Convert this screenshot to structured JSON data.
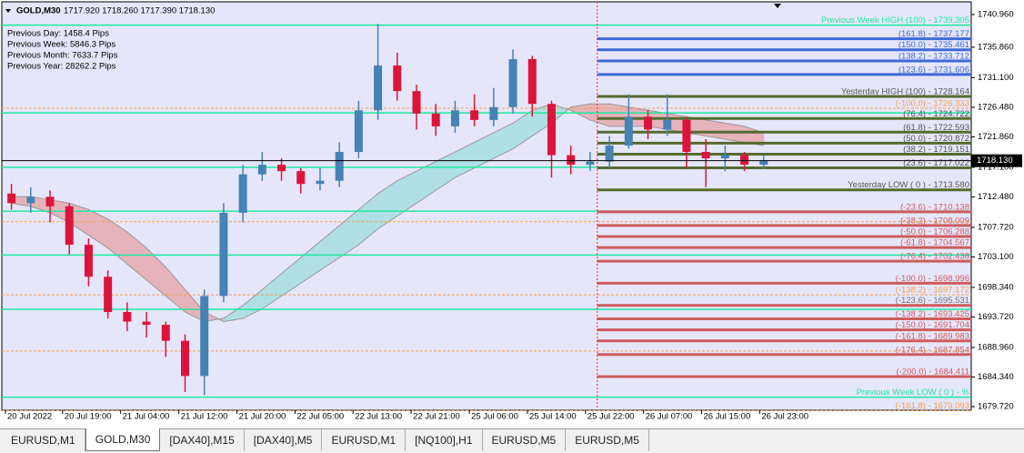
{
  "chart_data": {
    "type": "candlestick",
    "title": "GOLD,M30",
    "header_prices": "1717.920 1718.260 1717.390 1718.130",
    "info_lines": [
      "Previous Day: 1458.4 Pips",
      "Previous Week: 5846.3 Pips",
      "Previous Month: 7633.7 Pips",
      "Previous Year: 28262.2 Pips"
    ],
    "xlim": [
      -0.5,
      49.76
    ],
    "xticks": [
      {
        "value": -0.31,
        "label": "20 Jul 2022"
      },
      {
        "value": 2.65,
        "label": "20 Jul 19:00"
      },
      {
        "value": 5.66,
        "label": "21 Jul 04:00"
      },
      {
        "value": 8.68,
        "label": "21 Jul 12:00"
      },
      {
        "value": 11.69,
        "label": "21 Jul 20:00"
      },
      {
        "value": 14.7,
        "label": "22 Jul 05:00"
      },
      {
        "value": 17.71,
        "label": "22 Jul 13:00"
      },
      {
        "value": 20.72,
        "label": "22 Jul 21:00"
      },
      {
        "value": 23.74,
        "label": "25 Jul 06:00"
      },
      {
        "value": 26.75,
        "label": "25 Jul 14:00"
      },
      {
        "value": 29.76,
        "label": "25 Jul 22:00"
      },
      {
        "value": 32.77,
        "label": "26 Jul 07:00"
      },
      {
        "value": 35.78,
        "label": "26 Jul 15:00"
      },
      {
        "value": 38.79,
        "label": "26 Jul 23:00"
      }
    ],
    "ylim": [
      1679.15,
      1742.95
    ],
    "yticks": [
      {
        "value": 1740.96,
        "label": "1740.960"
      },
      {
        "value": 1735.86,
        "label": "1735.860"
      },
      {
        "value": 1731.1,
        "label": "1731.100"
      },
      {
        "value": 1726.48,
        "label": "1726.480"
      },
      {
        "value": 1721.86,
        "label": "1721.860"
      },
      {
        "value": 1717.1,
        "label": "1717.100"
      },
      {
        "value": 1712.48,
        "label": "1712.480"
      },
      {
        "value": 1707.72,
        "label": "1707.720"
      },
      {
        "value": 1703.1,
        "label": "1703.100"
      },
      {
        "value": 1698.34,
        "label": "1698.340"
      },
      {
        "value": 1693.72,
        "label": "1693.720"
      },
      {
        "value": 1688.96,
        "label": "1688.960"
      },
      {
        "value": 1684.34,
        "label": "1684.340"
      },
      {
        "value": 1679.72,
        "label": "1679.720"
      }
    ],
    "current_price": {
      "value": 1718.13,
      "label": "1718.130"
    },
    "up_color": "#4682b4",
    "down_color": "#dc143c",
    "open": [
      1713,
      1711.5,
      1712.5,
      1711,
      1705,
      1700,
      1694.5,
      1693,
      1692.5,
      1690,
      1684.5,
      1697,
      1710,
      1716,
      1717.5,
      1716.5,
      1714.5,
      1715,
      1719.5,
      1726,
      1733,
      1729,
      1725.5,
      1723.5,
      1726,
      1724.5,
      1726.5,
      1734,
      1727,
      1719,
      1717.5,
      1718,
      1720.5,
      1725,
      1723,
      1724.5,
      1719.5,
      1718.5,
      1719,
      1717.5
    ],
    "high": [
      1714.5,
      1714,
      1713.5,
      1711.5,
      1706,
      1701,
      1696,
      1694.5,
      1693,
      1691,
      1698,
      1711.5,
      1717.5,
      1719.5,
      1718.5,
      1717,
      1717,
      1721,
      1727.5,
      1739.5,
      1735,
      1730,
      1727,
      1727.5,
      1728.5,
      1729.5,
      1735.5,
      1734.5,
      1727.5,
      1720.5,
      1719.5,
      1722,
      1728.5,
      1726,
      1728.5,
      1725,
      1721.5,
      1720.5,
      1719.5,
      1718.9
    ],
    "low": [
      1710.5,
      1710,
      1708.5,
      1703.5,
      1698.5,
      1693.5,
      1691.5,
      1690.5,
      1687.5,
      1682,
      1681.5,
      1696,
      1708.5,
      1715,
      1715,
      1713,
      1713.5,
      1714,
      1718.5,
      1724.5,
      1727.5,
      1723,
      1722,
      1722.5,
      1723.5,
      1723.5,
      1725.5,
      1725,
      1715.5,
      1716,
      1716.5,
      1717,
      1720,
      1721.5,
      1722,
      1717,
      1714,
      1716.5,
      1716.5,
      1716.8
    ],
    "close": [
      1711.5,
      1712.5,
      1711,
      1705,
      1700,
      1694.5,
      1693,
      1692.5,
      1690,
      1684.5,
      1697,
      1710,
      1716,
      1717.5,
      1716.5,
      1714.5,
      1715,
      1719.5,
      1726,
      1733,
      1729,
      1725.5,
      1723.5,
      1726,
      1724.5,
      1726.5,
      1734,
      1727,
      1719,
      1717.5,
      1718,
      1720.5,
      1725,
      1723,
      1724.5,
      1719.5,
      1718.5,
      1719,
      1717.5,
      1718.13
    ],
    "cloud": {
      "fast": [
        1711.5,
        1711,
        1710,
        1708.5,
        1706.5,
        1704.5,
        1702,
        1699.5,
        1697,
        1694.5,
        1693,
        1693.5,
        1695.5,
        1698,
        1700.5,
        1703,
        1705.5,
        1708,
        1710.5,
        1713,
        1715,
        1716.5,
        1718,
        1719.5,
        1721,
        1722.5,
        1724,
        1726,
        1727,
        1726,
        1724.5,
        1723.5,
        1723.5,
        1723.5,
        1723,
        1722.5,
        1722,
        1721.5,
        1721,
        1720.5
      ],
      "slow": [
        1712.5,
        1712.5,
        1712,
        1711.5,
        1710.5,
        1709,
        1707,
        1704.5,
        1701.5,
        1698,
        1694.5,
        1693,
        1693.5,
        1695,
        1697,
        1699,
        1701,
        1703,
        1705,
        1707.5,
        1709.5,
        1711.5,
        1713.5,
        1715.5,
        1717,
        1718.5,
        1720,
        1722,
        1724,
        1726.5,
        1727,
        1727,
        1726.5,
        1726,
        1725.5,
        1725,
        1724.5,
        1724,
        1723.5,
        1722.5
      ],
      "falling_color": "#e6b3bb",
      "rising_color": "#b0e0e6",
      "line_color": "#9a9a9a"
    },
    "separator_x": 30.37,
    "separator_color": "#e0303a",
    "levels": [
      {
        "value": 1739.305,
        "label": "Previous Week HIGH (100) - 1739.305",
        "color": "#1de9a0",
        "style": "thin"
      },
      {
        "value": 1725.592,
        "color": "#1de9a0",
        "style": "thin"
      },
      {
        "value": 1717.109,
        "color": "#1de9a0",
        "style": "thin"
      },
      {
        "value": 1710.253,
        "color": "#1de9a0",
        "style": "thin"
      },
      {
        "value": 1703.396,
        "color": "#1de9a0",
        "style": "thin"
      },
      {
        "value": 1694.913,
        "color": "#1de9a0",
        "style": "thin"
      },
      {
        "value": 1681.2,
        "label": "Previous Week LOW ( 0 ) - %",
        "color": "#1de9a0",
        "style": "thin"
      },
      {
        "value": 1726.333,
        "label": "(-100.0) - 1726.333",
        "color": "#f5a04a",
        "style": "dashed"
      },
      {
        "value": 1708.6,
        "color": "#f5a04a",
        "style": "dashed"
      },
      {
        "value": 1697.172,
        "label": "(-138.2) - 1697.172",
        "color": "#f5a04a",
        "style": "dashed"
      },
      {
        "value": 1688.4,
        "color": "#f5a04a",
        "style": "dashed"
      },
      {
        "value": 1679.093,
        "label": "(-161.8) - 1679.093",
        "color": "#f5a04a",
        "style": "dashed"
      },
      {
        "value": 1737.177,
        "label": "(161.8) - 1737.177",
        "color": "#3d6ad6",
        "style": "thick"
      },
      {
        "value": 1735.461,
        "label": "(150.0) - 1735.461",
        "color": "#3d6ad6",
        "style": "thick"
      },
      {
        "value": 1733.712,
        "label": "(138.2) - 1733.712",
        "color": "#3d6ad6",
        "style": "thick"
      },
      {
        "value": 1731.606,
        "label": "(123.6) - 1731.606",
        "color": "#3d6ad6",
        "style": "thick"
      },
      {
        "value": 1728.164,
        "label": "Yesterday HIGH (100) - 1728.164",
        "color": "#556b2f",
        "label_color": "#555555",
        "style": "thick"
      },
      {
        "value": 1724.722,
        "label": "(76.4) - 1724.722",
        "color": "#556b2f",
        "label_color": "#555555",
        "style": "thick"
      },
      {
        "value": 1722.593,
        "label": "(61.8) - 1722.593",
        "color": "#556b2f",
        "label_color": "#555555",
        "style": "thick"
      },
      {
        "value": 1720.872,
        "label": "(50.0) - 1720.872",
        "color": "#556b2f",
        "label_color": "#555555",
        "style": "thick"
      },
      {
        "value": 1719.151,
        "label": "(38.2) - 1719.151",
        "color": "#556b2f",
        "label_color": "#555555",
        "style": "thick"
      },
      {
        "value": 1717.022,
        "label": "(23.6) - 1717.022",
        "color": "#556b2f",
        "label_color": "#555555",
        "style": "thick"
      },
      {
        "value": 1713.58,
        "label": "Yesterday LOW ( 0 ) - 1713.580",
        "color": "#556b2f",
        "label_color": "#555555",
        "style": "thick"
      },
      {
        "value": 1710.138,
        "label": "(-23.6) - 1710.138",
        "color": "#cd5c5c",
        "style": "thick"
      },
      {
        "value": 1708.009,
        "label": "(-38.2) - 1708.009",
        "color": "#cd5c5c",
        "style": "thick"
      },
      {
        "value": 1706.288,
        "label": "(-50.0) - 1706.288",
        "color": "#cd5c5c",
        "style": "thick"
      },
      {
        "value": 1704.567,
        "label": "(-61.8) - 1704.567",
        "color": "#cd5c5c",
        "style": "thick"
      },
      {
        "value": 1702.438,
        "label": "(-76.4) - 1702.438",
        "color": "#cd5c5c",
        "style": "thick"
      },
      {
        "value": 1698.996,
        "label": "(-100.0) - 1698.996",
        "color": "#cd5c5c",
        "style": "thick"
      },
      {
        "value": 1695.531,
        "label": "(-123.6) - 1695.531",
        "color": "#cd5c5c",
        "label_color": "#777777",
        "style": "thick"
      },
      {
        "value": 1693.425,
        "label": "(-138.2) - 1693.425",
        "color": "#cd5c5c",
        "style": "thick"
      },
      {
        "value": 1691.704,
        "label": "(-150.0) - 1691.704",
        "color": "#cd5c5c",
        "style": "thick"
      },
      {
        "value": 1689.983,
        "label": "(-161.8) - 1689.983",
        "color": "#cd5c5c",
        "style": "thick"
      },
      {
        "value": 1687.854,
        "label": "(-176.4) - 1687.854",
        "color": "#cd5c5c",
        "style": "thick"
      },
      {
        "value": 1684.411,
        "label": "(-200.0) - 1684.411",
        "color": "#cd5c5c",
        "style": "thick"
      }
    ]
  },
  "tabs": [
    "EURUSD,M1",
    "GOLD,M30",
    "[DAX40],M15",
    "[DAX40],M5",
    "EURUSD,M1",
    "[NQ100],H1",
    "EURUSD,M5",
    "EURUSD,M5"
  ],
  "active_tab": 1
}
